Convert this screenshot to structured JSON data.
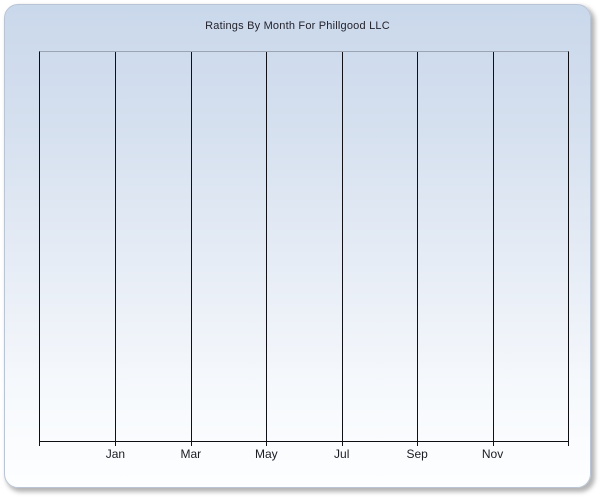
{
  "chart_data": {
    "type": "bar",
    "title": "Ratings By Month For Phillgood LLC",
    "categories": [
      "Jan",
      "Mar",
      "May",
      "Jul",
      "Sep",
      "Nov"
    ],
    "series": [],
    "values": [],
    "xlabel": "",
    "ylabel": "",
    "y_tick_labels": [],
    "legend": "none",
    "plot_empty": true,
    "grid": "vertical gridlines only, 7 equal intervals across x-axis"
  },
  "colors": {
    "card_gradient_top": "#cad8eb",
    "card_gradient_bottom": "#fdfeff",
    "card_border": "#b9c5d5",
    "plot_top_border": "#9ba4b0",
    "gridline": "#101016",
    "title_text": "#23232d",
    "axis_label_text": "#1b1b22",
    "page_background": "#ffffff"
  }
}
